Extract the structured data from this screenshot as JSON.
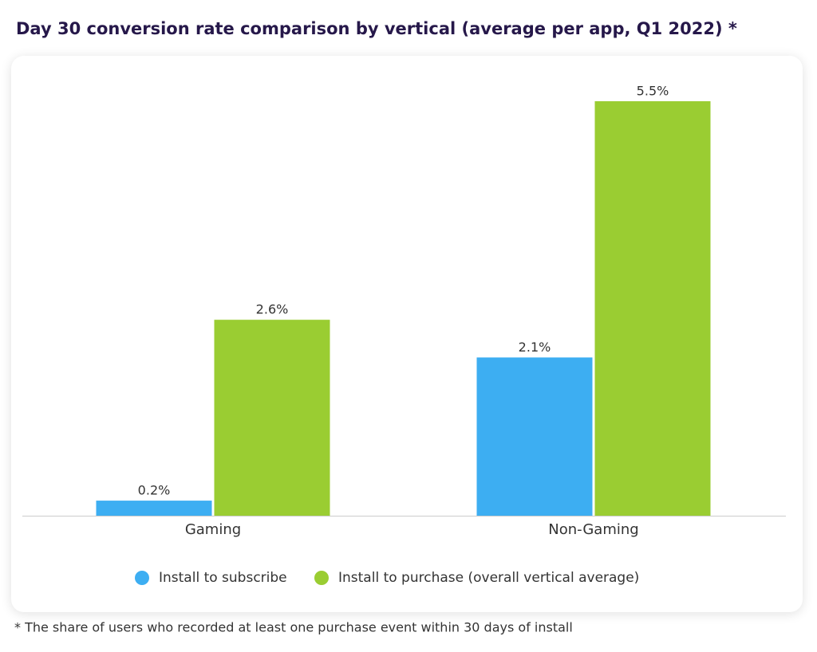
{
  "chart_data": {
    "type": "bar",
    "title": "Day 30 conversion rate comparison by vertical (average per app, Q1 2022) *",
    "categories": [
      "Gaming",
      "Non-Gaming"
    ],
    "series": [
      {
        "name": "Install to subscribe",
        "color": "#3daef2",
        "values": [
          0.2,
          2.1
        ],
        "value_labels": [
          "0.2%",
          "2.1%"
        ]
      },
      {
        "name": "Install to purchase (overall vertical average)",
        "color": "#9acd32",
        "values": [
          2.6,
          5.5
        ],
        "value_labels": [
          "2.6%",
          "5.5%"
        ]
      }
    ],
    "footnote": "* The share of users who recorded at least one purchase event within 30 days of install"
  }
}
